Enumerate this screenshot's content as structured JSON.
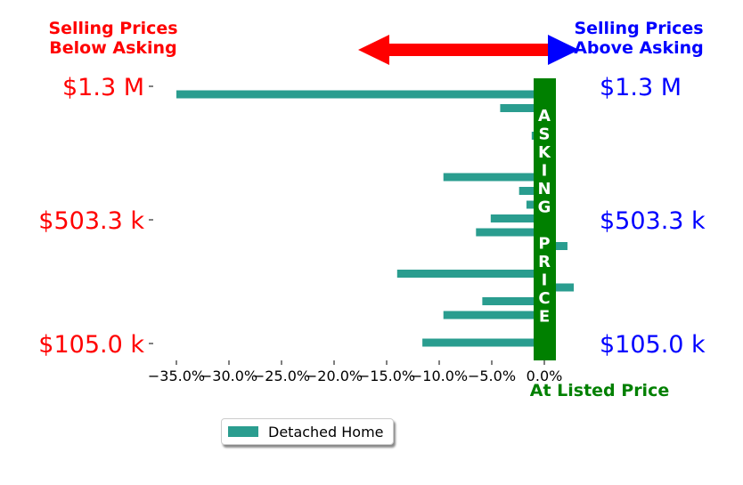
{
  "colors": {
    "bar": "#2a9d8f",
    "below": "#ff0000",
    "above": "#0000ff",
    "asking": "#008000"
  },
  "headings": {
    "below_line1": "Selling Prices",
    "below_line2": "Below Asking",
    "above_line1": "Selling Prices",
    "above_line2": "Above Asking"
  },
  "price_labels": {
    "top": "$1.3 M",
    "middle": "$503.3 k",
    "bottom": "$105.0 k"
  },
  "asking_text": "ASKING PRICE",
  "at_listed_label": "At Listed Price",
  "legend_label": "Detached Home",
  "chart_data": {
    "type": "bar",
    "orientation": "horizontal",
    "xlim": [
      -36.5,
      2.0
    ],
    "x_ticks": [
      -35,
      -30,
      -25,
      -20,
      -15,
      -10,
      -5,
      0
    ],
    "x_tick_labels": [
      "−35.0%",
      "−30.0%",
      "−25.0%",
      "−20.0%",
      "−15.0%",
      "−10.0%",
      "−5.0%",
      "0.0%"
    ],
    "y_tick_labels": [
      "$1.3 M",
      "$503.3 k",
      "$105.0 k"
    ],
    "grid": false,
    "legend_position": "below",
    "series": [
      {
        "name": "Detached Home",
        "values": [
          -35.0,
          -4.2,
          -0.3,
          -1.2,
          0.9,
          -0.9,
          -9.6,
          -2.4,
          -1.7,
          -5.1,
          -6.5,
          2.2,
          0.8,
          -14.0,
          2.8,
          -5.9,
          -9.6,
          0.9,
          -11.6
        ]
      }
    ]
  }
}
